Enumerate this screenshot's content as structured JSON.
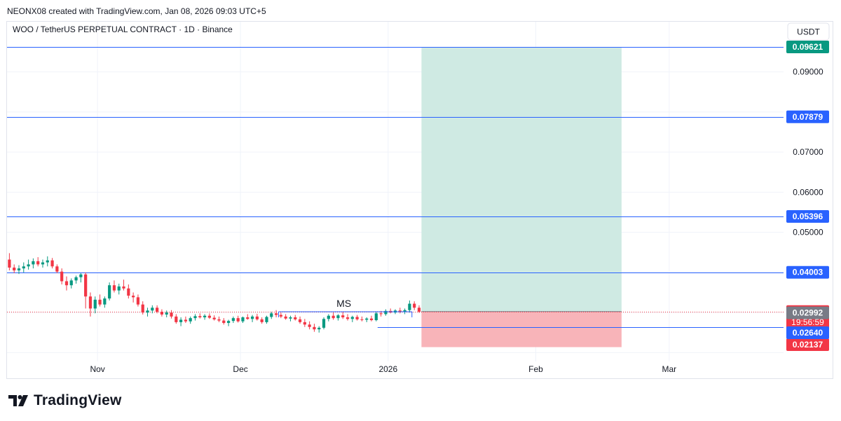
{
  "credit": "NEONX08 created with TradingView.com, Jan 08, 2026 09:03 UTC+5",
  "brand": {
    "logo_text": "TradingView",
    "icon": "tradingview-logo-icon"
  },
  "chart_data": {
    "type": "candlestick",
    "title": "WOO / TetherUS PERPETUAL CONTRACT · 1D · Binance",
    "currency": "USDT",
    "y_ticks": [
      0.05,
      0.06,
      0.07,
      0.09
    ],
    "y_tick_labels": [
      "0.05000",
      "0.06000",
      "0.07000",
      "0.09000"
    ],
    "ylim": [
      0.0178,
      0.1025
    ],
    "x_ticks": [
      {
        "date": "2025-11-01",
        "label": "Nov"
      },
      {
        "date": "2025-12-01",
        "label": "Dec"
      },
      {
        "date": "2026-01-01",
        "label": "2026"
      },
      {
        "date": "2026-02-01",
        "label": "Feb"
      },
      {
        "date": "2026-03-01",
        "label": "Mar"
      }
    ],
    "xlim": [
      "2025-10-13",
      "2026-03-25"
    ],
    "grid": true,
    "horizontal_levels": [
      {
        "value": 0.09621,
        "label": "0.09621",
        "color": "#089981"
      },
      {
        "value": 0.07879,
        "label": "0.07879",
        "color": "#2962ff"
      },
      {
        "value": 0.05396,
        "label": "0.05396",
        "color": "#2962ff"
      },
      {
        "value": 0.04003,
        "label": "0.04003",
        "color": "#2962ff"
      },
      {
        "value": 0.0264,
        "label": "0.02640",
        "color": "#2962ff"
      }
    ],
    "last_price": {
      "value": 0.03024,
      "label": "0.03024",
      "countdown": "19:56:59",
      "color": "#f23645"
    },
    "price_tags": [
      {
        "value": 0.02992,
        "label": "0.02992",
        "color": "#787b86"
      },
      {
        "value": 0.02137,
        "label": "0.02137",
        "color": "#f23645"
      }
    ],
    "position": {
      "entry": 0.03024,
      "target": 0.09621,
      "stop": 0.02137,
      "start": "2026-01-08",
      "end": "2026-02-19",
      "profit_color": "#cfeae3",
      "loss_color": "#f8b4b9"
    },
    "annotation": {
      "text": "MS",
      "level": 0.0302,
      "from": "2025-12-09",
      "to": "2026-01-06"
    },
    "candles_start": "2025-10-13",
    "candles": [
      [
        0.0432,
        0.0448,
        0.0405,
        0.0412
      ],
      [
        0.0412,
        0.042,
        0.0398,
        0.0405
      ],
      [
        0.0405,
        0.0418,
        0.0396,
        0.041
      ],
      [
        0.041,
        0.0425,
        0.04,
        0.0415
      ],
      [
        0.0415,
        0.0432,
        0.0407,
        0.042
      ],
      [
        0.042,
        0.0435,
        0.041,
        0.0428
      ],
      [
        0.0428,
        0.0438,
        0.0415,
        0.042
      ],
      [
        0.042,
        0.0432,
        0.0412,
        0.0425
      ],
      [
        0.0425,
        0.044,
        0.0415,
        0.043
      ],
      [
        0.043,
        0.0436,
        0.041,
        0.0415
      ],
      [
        0.0415,
        0.042,
        0.0398,
        0.0402
      ],
      [
        0.0402,
        0.041,
        0.037,
        0.0378
      ],
      [
        0.0378,
        0.039,
        0.0355,
        0.0368
      ],
      [
        0.0368,
        0.0385,
        0.036,
        0.038
      ],
      [
        0.038,
        0.0392,
        0.0372,
        0.0388
      ],
      [
        0.0388,
        0.0398,
        0.0375,
        0.0395
      ],
      [
        0.0395,
        0.04,
        0.031,
        0.034
      ],
      [
        0.034,
        0.035,
        0.029,
        0.031
      ],
      [
        0.031,
        0.034,
        0.0298,
        0.0332
      ],
      [
        0.0332,
        0.0345,
        0.0315,
        0.032
      ],
      [
        0.032,
        0.034,
        0.0312,
        0.0335
      ],
      [
        0.0335,
        0.0375,
        0.033,
        0.0368
      ],
      [
        0.0368,
        0.038,
        0.035,
        0.0355
      ],
      [
        0.0355,
        0.0372,
        0.0345,
        0.0365
      ],
      [
        0.0365,
        0.0382,
        0.0355,
        0.036
      ],
      [
        0.036,
        0.037,
        0.0335,
        0.0342
      ],
      [
        0.0342,
        0.035,
        0.0325,
        0.0338
      ],
      [
        0.0338,
        0.0345,
        0.0315,
        0.032
      ],
      [
        0.032,
        0.0328,
        0.0295,
        0.03
      ],
      [
        0.03,
        0.0312,
        0.029,
        0.0305
      ],
      [
        0.0305,
        0.0318,
        0.0298,
        0.0312
      ],
      [
        0.0312,
        0.0318,
        0.0298,
        0.0302
      ],
      [
        0.0302,
        0.0308,
        0.029,
        0.0295
      ],
      [
        0.0295,
        0.0305,
        0.0288,
        0.03
      ],
      [
        0.03,
        0.0306,
        0.0285,
        0.029
      ],
      [
        0.029,
        0.0296,
        0.0272,
        0.0276
      ],
      [
        0.0276,
        0.0288,
        0.0266,
        0.0282
      ],
      [
        0.0282,
        0.029,
        0.0274,
        0.0278
      ],
      [
        0.0278,
        0.029,
        0.0272,
        0.0286
      ],
      [
        0.0286,
        0.0296,
        0.028,
        0.0291
      ],
      [
        0.0291,
        0.0298,
        0.0285,
        0.0288
      ],
      [
        0.0288,
        0.0296,
        0.0282,
        0.0292
      ],
      [
        0.0292,
        0.0298,
        0.0284,
        0.0287
      ],
      [
        0.0287,
        0.0293,
        0.028,
        0.0283
      ],
      [
        0.0283,
        0.029,
        0.0276,
        0.028
      ],
      [
        0.028,
        0.0286,
        0.027,
        0.0274
      ],
      [
        0.0274,
        0.0282,
        0.0266,
        0.0279
      ],
      [
        0.0279,
        0.029,
        0.0274,
        0.0286
      ],
      [
        0.0286,
        0.0292,
        0.0275,
        0.0278
      ],
      [
        0.0278,
        0.029,
        0.0274,
        0.0288
      ],
      [
        0.0288,
        0.0296,
        0.0282,
        0.0284
      ],
      [
        0.0284,
        0.0294,
        0.0276,
        0.029
      ],
      [
        0.029,
        0.0297,
        0.028,
        0.0283
      ],
      [
        0.0283,
        0.0288,
        0.0272,
        0.0276
      ],
      [
        0.0276,
        0.0292,
        0.0272,
        0.0289
      ],
      [
        0.0289,
        0.0302,
        0.0284,
        0.0298
      ],
      [
        0.0298,
        0.0306,
        0.0288,
        0.0294
      ],
      [
        0.0294,
        0.03,
        0.0286,
        0.029
      ],
      [
        0.029,
        0.0296,
        0.0282,
        0.0285
      ],
      [
        0.0285,
        0.0292,
        0.0278,
        0.0288
      ],
      [
        0.0288,
        0.0294,
        0.028,
        0.0283
      ],
      [
        0.0283,
        0.029,
        0.0272,
        0.0276
      ],
      [
        0.0276,
        0.0284,
        0.0264,
        0.027
      ],
      [
        0.027,
        0.0278,
        0.0258,
        0.0264
      ],
      [
        0.0264,
        0.0272,
        0.0252,
        0.0258
      ],
      [
        0.0258,
        0.0266,
        0.025,
        0.0262
      ],
      [
        0.0262,
        0.0288,
        0.0258,
        0.0284
      ],
      [
        0.0284,
        0.0296,
        0.0278,
        0.0292
      ],
      [
        0.0292,
        0.03,
        0.0282,
        0.0286
      ],
      [
        0.0286,
        0.0296,
        0.028,
        0.0293
      ],
      [
        0.0293,
        0.0302,
        0.0284,
        0.0288
      ],
      [
        0.0288,
        0.0296,
        0.028,
        0.0284
      ],
      [
        0.0284,
        0.0292,
        0.0276,
        0.0289
      ],
      [
        0.0289,
        0.0294,
        0.028,
        0.0283
      ],
      [
        0.0283,
        0.029,
        0.0278,
        0.0282
      ],
      [
        0.0282,
        0.0288,
        0.0276,
        0.0285
      ],
      [
        0.0285,
        0.0292,
        0.0278,
        0.0281
      ],
      [
        0.0281,
        0.0302,
        0.0278,
        0.0298
      ],
      [
        0.0298,
        0.0304,
        0.029,
        0.0296
      ],
      [
        0.0296,
        0.0308,
        0.0292,
        0.0304
      ],
      [
        0.0304,
        0.031,
        0.0298,
        0.03
      ],
      [
        0.03,
        0.0308,
        0.0296,
        0.0305
      ],
      [
        0.0305,
        0.0312,
        0.0298,
        0.0302
      ],
      [
        0.0302,
        0.031,
        0.0296,
        0.0306
      ],
      [
        0.0306,
        0.033,
        0.03,
        0.0322
      ],
      [
        0.0322,
        0.0328,
        0.0306,
        0.0312
      ],
      [
        0.0312,
        0.0318,
        0.0299,
        0.0302
      ]
    ]
  }
}
